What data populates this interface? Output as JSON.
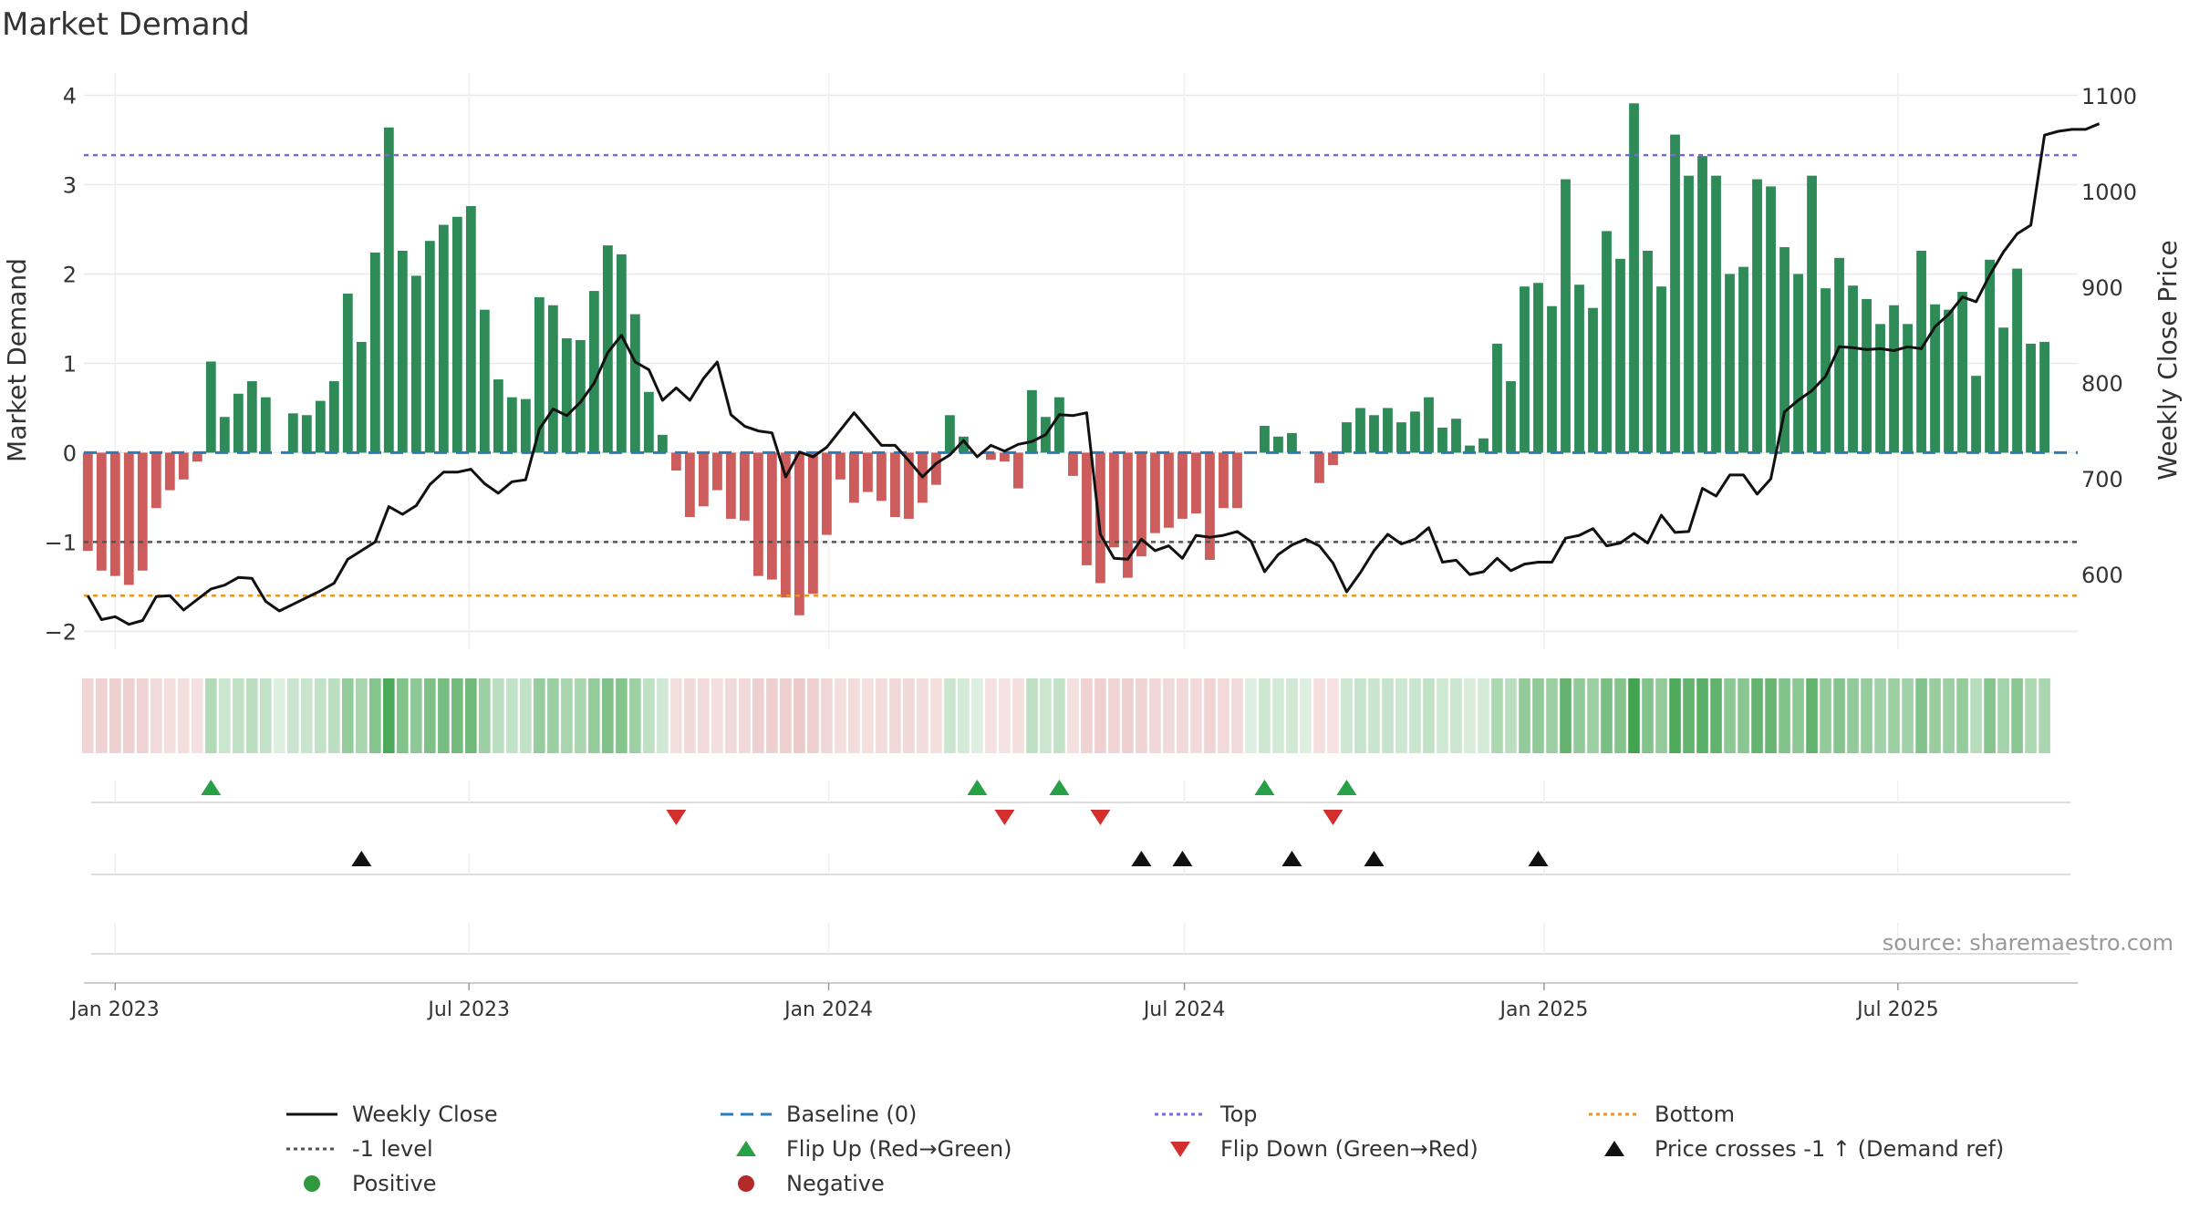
{
  "chart_data": {
    "type": "bar+line",
    "title": "Market Demand",
    "ylabel": "Market Demand",
    "y2label": "Weekly Close Price",
    "ylim": [
      -2.2,
      4.25
    ],
    "y2lim": [
      522,
      1124
    ],
    "yticks": [
      4,
      3,
      2,
      1,
      0,
      -1,
      -2
    ],
    "y2ticks": [
      1100,
      1000,
      900,
      800,
      700,
      600
    ],
    "x_start": "2022-12-16",
    "x_end": "2025-10-01",
    "x_ticks": [
      {
        "date": "2023-01-01",
        "label": "Jan 2023"
      },
      {
        "date": "2023-07-01",
        "label": "Jul 2023"
      },
      {
        "date": "2024-01-01",
        "label": "Jan 2024"
      },
      {
        "date": "2024-07-01",
        "label": "Jul 2024"
      },
      {
        "date": "2025-01-01",
        "label": "Jan 2025"
      },
      {
        "date": "2025-07-01",
        "label": "Jul 2025"
      }
    ],
    "week_start": "2022-12-18",
    "demand": [
      -1.1,
      -1.32,
      -1.38,
      -1.48,
      -1.32,
      -0.62,
      -0.42,
      -0.3,
      -0.1,
      1.02,
      0.4,
      0.66,
      0.8,
      0.62,
      0.0,
      0.44,
      0.42,
      0.58,
      0.8,
      1.78,
      1.24,
      2.24,
      3.64,
      2.26,
      1.98,
      2.37,
      2.55,
      2.64,
      2.76,
      1.6,
      0.82,
      0.62,
      0.6,
      1.74,
      1.65,
      1.28,
      1.26,
      1.81,
      2.32,
      2.22,
      1.55,
      0.68,
      0.2,
      -0.2,
      -0.72,
      -0.6,
      -0.42,
      -0.74,
      -0.76,
      -1.38,
      -1.42,
      -1.62,
      -1.82,
      -1.58,
      -0.92,
      -0.3,
      -0.56,
      -0.44,
      -0.54,
      -0.72,
      -0.74,
      -0.56,
      -0.36,
      0.42,
      0.18,
      0.0,
      -0.08,
      -0.1,
      -0.4,
      0.7,
      0.4,
      0.62,
      -0.26,
      -1.26,
      -1.46,
      -1.06,
      -1.4,
      -1.16,
      -0.9,
      -0.84,
      -0.74,
      -0.68,
      -1.2,
      -0.62,
      -0.62,
      0.0,
      0.3,
      0.18,
      0.22,
      0.0,
      -0.34,
      -0.14,
      0.34,
      0.5,
      0.42,
      0.5,
      0.34,
      0.46,
      0.62,
      0.28,
      0.38,
      0.08,
      0.16,
      1.22,
      0.8,
      1.86,
      1.9,
      1.64,
      3.06,
      1.88,
      1.62,
      2.48,
      2.17,
      3.91,
      2.26,
      1.86,
      3.56,
      3.1,
      3.32,
      3.1,
      2.0,
      2.08,
      3.06,
      2.98,
      2.3,
      2.0,
      3.1,
      1.84,
      2.18,
      1.87,
      1.72,
      1.44,
      1.65,
      1.44,
      2.26,
      1.66,
      1.6,
      1.8,
      0.86,
      2.16,
      1.4,
      2.06,
      1.22,
      1.24
    ],
    "close": [
      578,
      553,
      556,
      548,
      552,
      577,
      578,
      563,
      574,
      585,
      589,
      597,
      596,
      572,
      562,
      569,
      576,
      583,
      591,
      616,
      625,
      634,
      671,
      663,
      672,
      694,
      707,
      707,
      710,
      695,
      685,
      697,
      699,
      752,
      773,
      766,
      780,
      800,
      832,
      850,
      822,
      814,
      782,
      795,
      782,
      805,
      822,
      767,
      755,
      750,
      748,
      702,
      728,
      723,
      733,
      751,
      769,
      752,
      735,
      735,
      719,
      702,
      716,
      725,
      740,
      723,
      735,
      729,
      736,
      739,
      746,
      767,
      766,
      769,
      642,
      617,
      616,
      637,
      625,
      630,
      617,
      641,
      639,
      641,
      645,
      635,
      603,
      621,
      631,
      637,
      630,
      612,
      582,
      602,
      625,
      642,
      632,
      637,
      649,
      613,
      615,
      600,
      603,
      617,
      604,
      611,
      613,
      613,
      638,
      641,
      648,
      630,
      633,
      643,
      633,
      662,
      644,
      645,
      690,
      682,
      704,
      704,
      684,
      700,
      770,
      782,
      792,
      807,
      838,
      837,
      835,
      836,
      834,
      838,
      836,
      859,
      872,
      890,
      885,
      913,
      937,
      956,
      965,
      1059,
      1063,
      1065,
      1065,
      1071
    ],
    "top_level": 3.33,
    "bottom_level": -1.6,
    "minus_one_level": -1.0,
    "flip_up_weeks": [
      9,
      65,
      71,
      86,
      92
    ],
    "flip_down_weeks": [
      43,
      67,
      74,
      91
    ],
    "price_cross_weeks": [
      20,
      77,
      80,
      88,
      94,
      106
    ],
    "legend": [
      {
        "key": "weekly_close",
        "label": "Weekly Close",
        "color": "#111111"
      },
      {
        "key": "baseline",
        "label": "Baseline (0)",
        "color": "#2b7bba"
      },
      {
        "key": "top",
        "label": "Top",
        "color": "#7b68d4"
      },
      {
        "key": "bottom",
        "label": "Bottom",
        "color": "#e69526"
      },
      {
        "key": "minus_one",
        "label": "-1 level",
        "color": "#555555"
      },
      {
        "key": "flip_up",
        "label": "Flip Up (Red→Green)",
        "color": "#27a046"
      },
      {
        "key": "flip_down",
        "label": "Flip Down (Green→Red)",
        "color": "#d32f2f"
      },
      {
        "key": "price_cross",
        "label": "Price crosses -1 ↑ (Demand ref)",
        "color": "#111111"
      },
      {
        "key": "positive",
        "label": "Positive",
        "color": "#2e9a3d"
      },
      {
        "key": "negative",
        "label": "Negative",
        "color": "#b22a2a"
      }
    ],
    "source": "source: sharemaestro.com"
  },
  "colors": {
    "positive_bar": "#2e8b57",
    "negative_bar": "#cd5c5c",
    "gridline": "#e8e8e8",
    "axis": "#cccccc"
  }
}
